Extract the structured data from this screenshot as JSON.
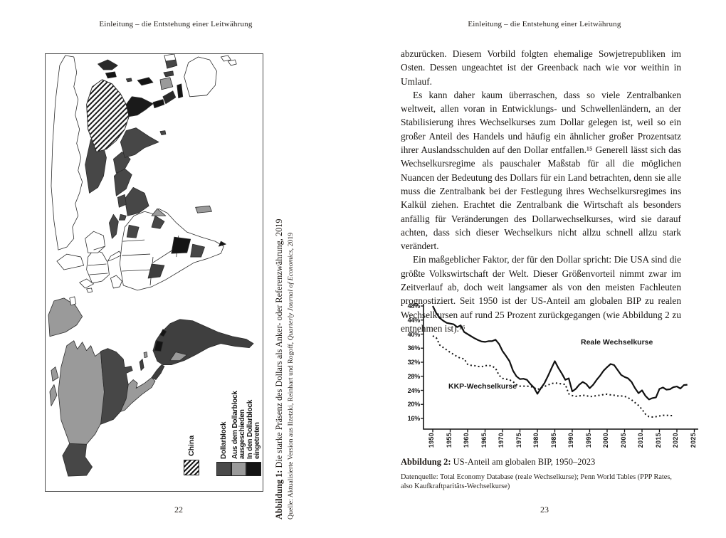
{
  "left_page": {
    "header": "Einleitung – die Entstehung einer Leitwährung",
    "page_number": "22",
    "figure": {
      "china_label": "China",
      "legend_items": [
        {
          "label": "Dollarblock",
          "color": "#4a4a4a"
        },
        {
          "label": "Aus dem Dollarblock ausgeschieden",
          "color": "#9a9a9a"
        },
        {
          "label": "In den Dollarblock eingetreten",
          "color": "#141414"
        }
      ],
      "caption_label": "Abbildung 1:",
      "caption_text": " Die starke Präsenz des Dollars als Anker- oder Referenzwährung, 2019",
      "source_prefix": "Quelle: Aktualisierte Version aus Ilzetzki, Reinhart und Rogoff, ",
      "source_journal": "Quarterly Journal of Economics",
      "source_suffix": ", 2019"
    }
  },
  "right_page": {
    "header": "Einleitung – die Entstehung einer Leitwährung",
    "page_number": "23",
    "paragraphs": [
      {
        "indent": false,
        "text": "abzurücken. Diesem Vorbild folgten ehemalige Sowjetrepubliken im Osten. Dessen ungeachtet ist der Greenback nach wie vor weithin in Umlauf."
      },
      {
        "indent": true,
        "text": "Es kann daher kaum überraschen, dass so viele Zentralbanken weltweit, allen voran in Entwicklungs- und Schwellenländern, an der Stabilisierung ihres Wechselkurses zum Dollar gelegen ist, weil so ein großer Anteil des Handels und häufig ein ähnlicher großer Prozentsatz ihrer Auslandsschulden auf den Dollar entfallen.¹⁵ Generell lässt sich das Wechselkursregime als pauschaler Maßstab für all die möglichen Nuancen der Bedeutung des Dollars für ein Land betrachten, denn sie alle muss die Zentralbank bei der Festlegung ihres Wechselkursregimes ins Kalkül ziehen. Erachtet die Zentralbank die Wirtschaft als besonders anfällig für Veränderungen des Dollarwechselkurses, wird sie darauf achten, dass sich dieser Wechselkurs nicht allzu schnell allzu stark verändert."
      },
      {
        "indent": true,
        "text": "Ein maßgeblicher Faktor, der für den Dollar spricht: Die USA sind die größte Volkswirtschaft der Welt. Dieser Größenvorteil nimmt zwar im Zeitverlauf ab, doch weit langsamer als von den meisten Fachleuten prognostiziert. Seit 1950 ist der US-Anteil am globalen BIP zu realen Wechselkursen auf rund 25 Prozent zurückgegangen (wie Abbildung 2 zu entnehmen ist).¹⁶"
      }
    ],
    "figure": {
      "caption_label": "Abbildung 2:",
      "caption_text": " US-Anteil am globalen BIP, 1950–2023",
      "source_line": "Datenquelle: Total Economy Database (reale Wechselkurse); Penn World Tables (PPP Rates, also Kaufkraftparitäts-Wechselkurse)"
    }
  },
  "chart_data": {
    "type": "line",
    "title": "US-Anteil am globalen BIP, 1950–2023",
    "xlabel": "",
    "ylabel": "",
    "x_domain": [
      1950,
      2025
    ],
    "ylim": [
      16,
      48
    ],
    "grid": false,
    "legend_position": "inline-annotations",
    "y_ticks": [
      48,
      44,
      40,
      36,
      32,
      28,
      24,
      20,
      16
    ],
    "y_tick_suffix": "%",
    "x_ticks": [
      1950,
      1955,
      1960,
      1965,
      1970,
      1975,
      1980,
      1985,
      1990,
      1995,
      2000,
      2005,
      2010,
      2015,
      2020,
      2025
    ],
    "line_color": "#111111",
    "series": [
      {
        "name": "Reale Wechselkurse",
        "style": "solid",
        "x_start": 1950,
        "values": [
          48.0,
          46.0,
          44.6,
          43.8,
          43.2,
          43.0,
          42.8,
          42.0,
          42.5,
          40.6,
          40.0,
          39.4,
          38.8,
          38.3,
          37.9,
          37.8,
          38.0,
          38.0,
          38.4,
          37.2,
          35.2,
          33.8,
          32.3,
          29.6,
          28.0,
          27.2,
          27.3,
          27.0,
          25.8,
          24.8,
          23.0,
          24.6,
          26.0,
          28.0,
          30.2,
          32.3,
          30.4,
          28.8,
          27.0,
          27.4,
          23.7,
          24.4,
          25.6,
          26.4,
          25.8,
          24.6,
          25.6,
          27.0,
          28.2,
          29.6,
          30.6,
          31.5,
          31.2,
          29.8,
          28.4,
          27.8,
          27.4,
          26.4,
          24.6,
          23.2,
          24.0,
          22.4,
          21.4,
          21.8,
          22.0,
          24.4,
          24.8,
          24.2,
          24.3,
          24.9,
          25.1,
          24.5,
          25.5,
          25.6
        ]
      },
      {
        "name": "KKP-Wechselkurse",
        "style": "dotted",
        "x_start": 1950,
        "values": [
          39.5,
          39.0,
          36.9,
          36.2,
          35.5,
          34.8,
          34.2,
          33.6,
          33.1,
          33.0,
          31.4,
          31.1,
          31.0,
          30.8,
          30.7,
          31.0,
          31.1,
          30.9,
          30.3,
          28.3,
          27.4,
          27.2,
          27.0,
          26.5,
          25.6,
          25.2,
          25.2,
          25.2,
          25.1,
          24.8,
          24.2,
          24.7,
          25.1,
          25.5,
          25.9,
          26.1,
          26.0,
          25.8,
          25.7,
          23.0,
          22.5,
          22.3,
          22.4,
          22.6,
          22.5,
          22.2,
          22.3,
          22.5,
          22.6,
          22.8,
          22.9,
          22.7,
          22.6,
          22.4,
          22.4,
          22.3,
          21.9,
          21.3,
          20.5,
          19.7,
          18.6,
          17.2,
          16.5,
          16.4,
          16.5,
          16.7,
          16.9,
          16.9,
          16.8,
          16.8
        ]
      }
    ]
  }
}
